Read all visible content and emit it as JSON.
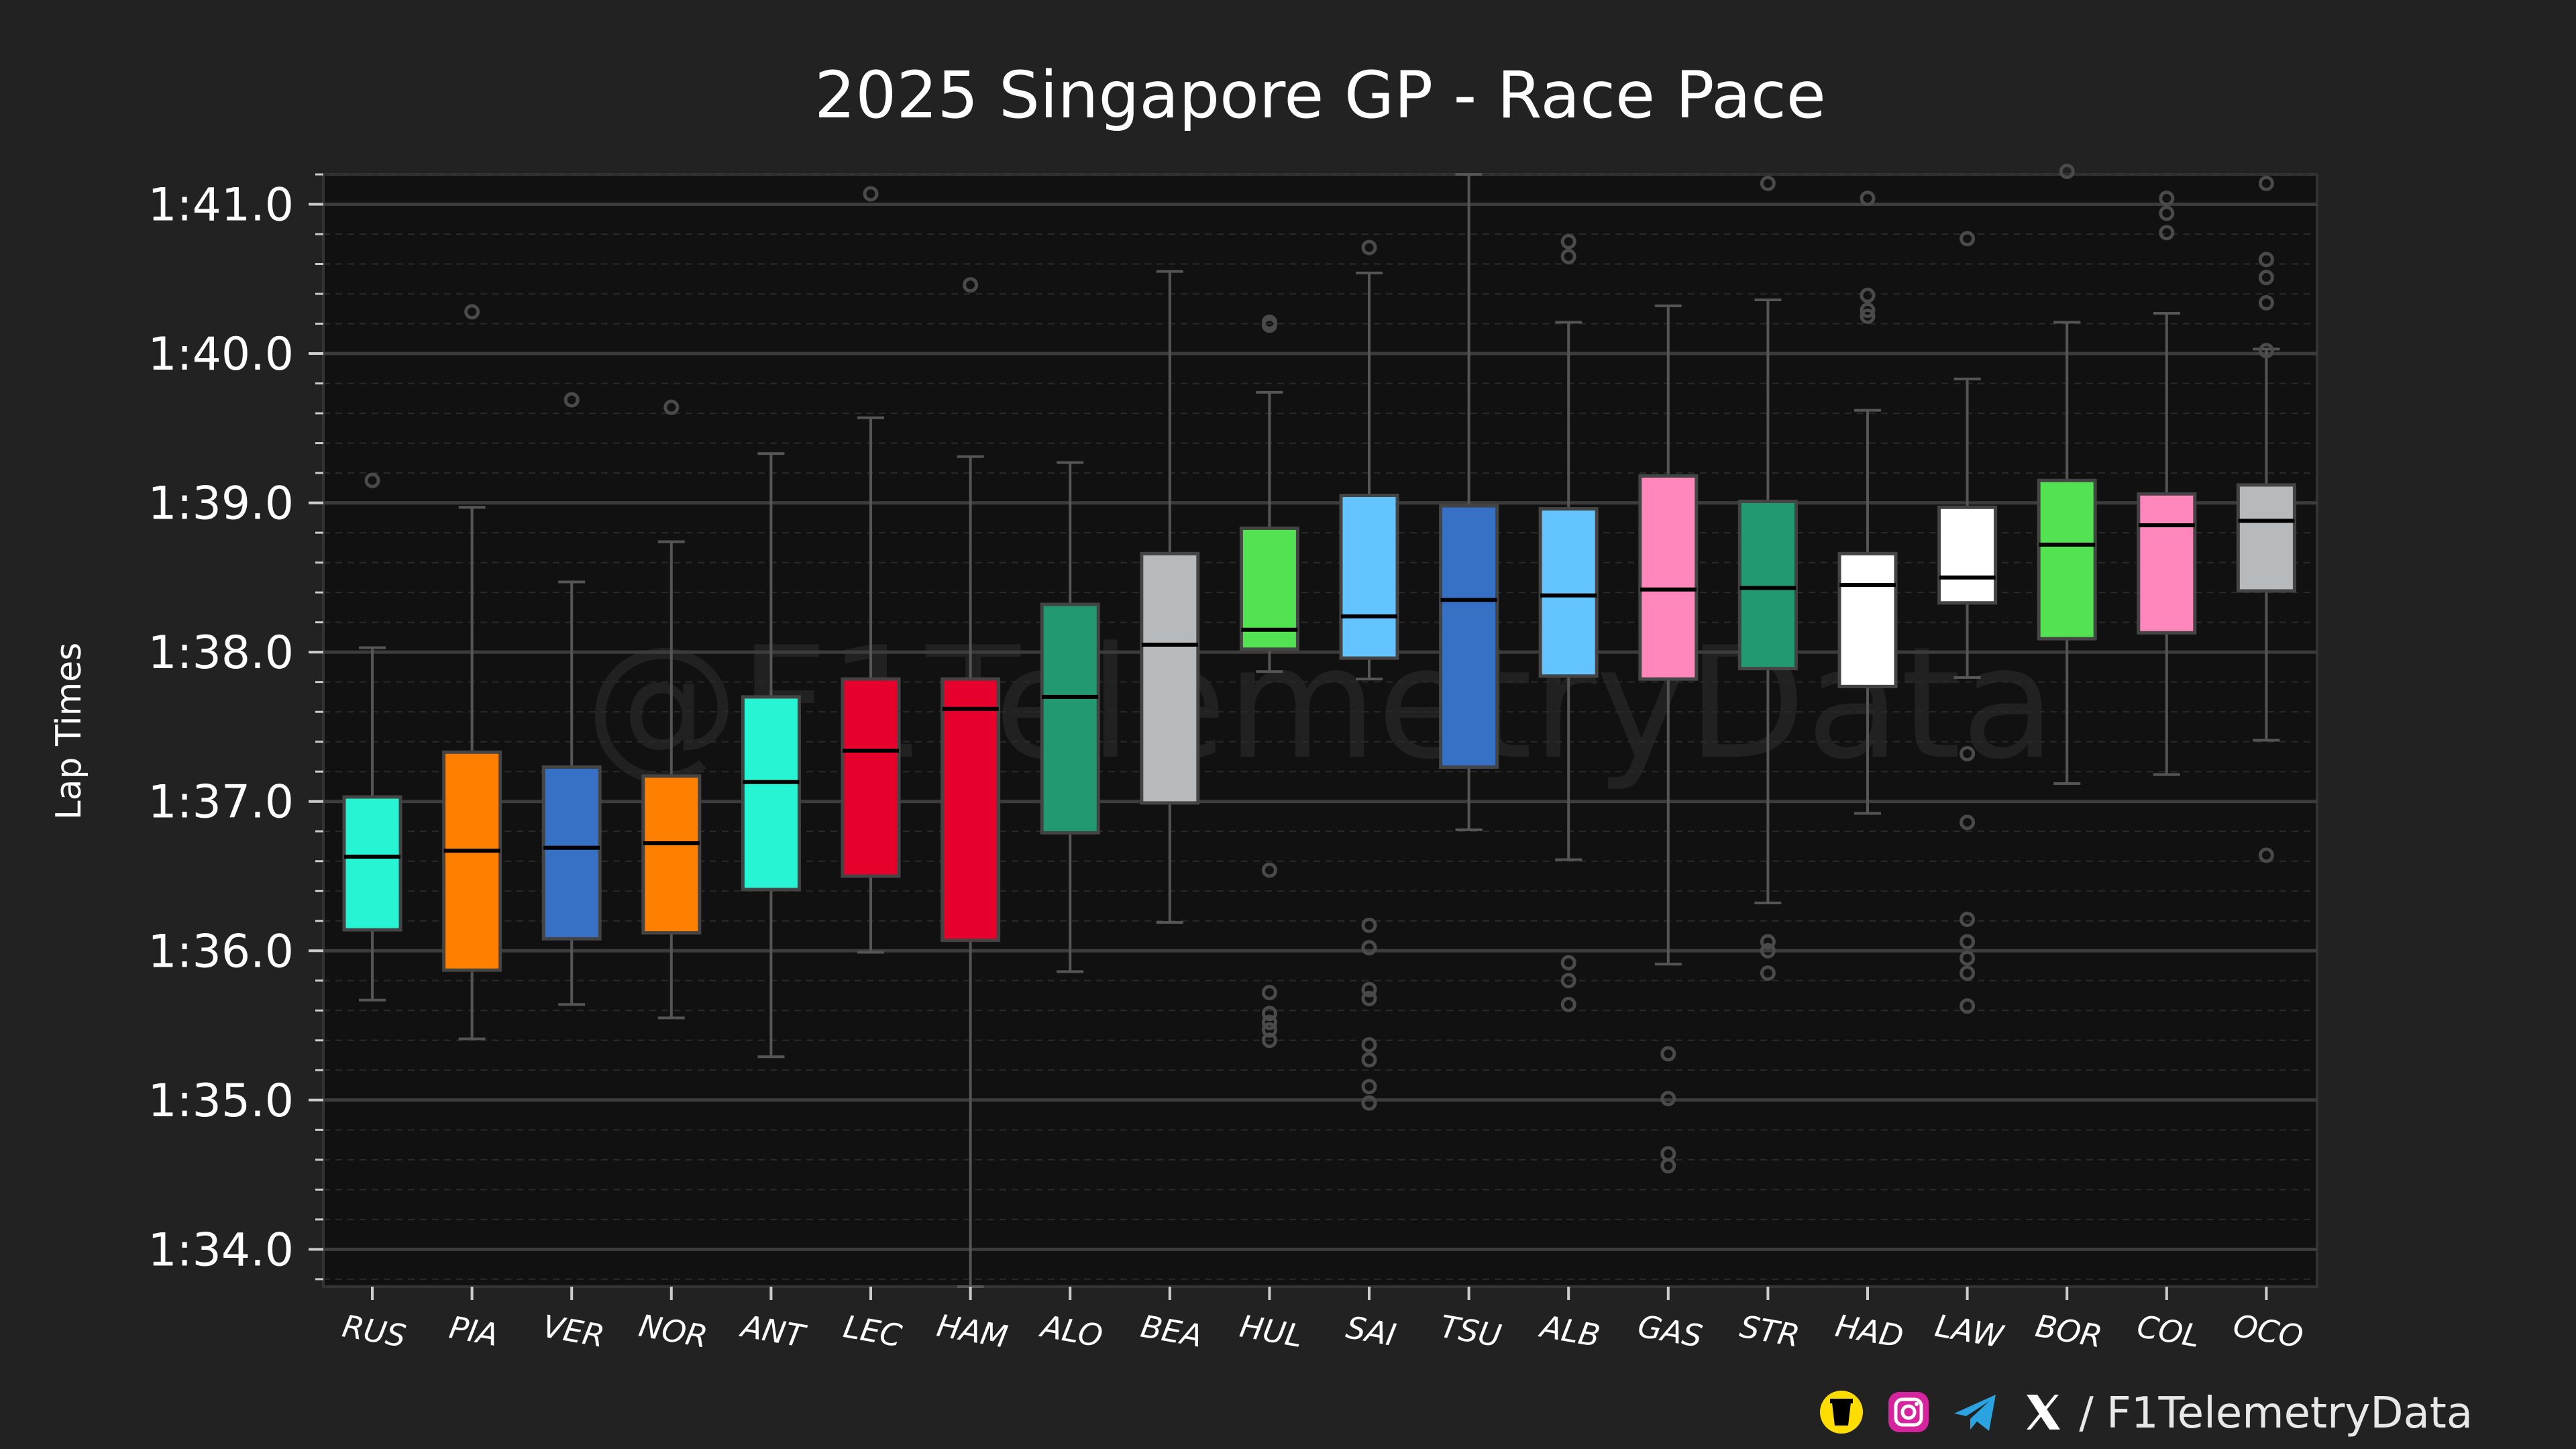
{
  "footer": {
    "separator": "/",
    "handle": "F1TelemetryData",
    "icons": [
      "buymeacoffee-icon",
      "instagram-icon",
      "telegram-icon",
      "x-icon"
    ]
  },
  "chart_data": {
    "type": "box",
    "title": "2025 Singapore GP - Race Pace",
    "xlabel": "",
    "ylabel": "Lap Times",
    "watermark": "@F1TelemetryData",
    "ylim": [
      93.75,
      101.2
    ],
    "yticks": [
      {
        "value": 94,
        "label": "1:34.0"
      },
      {
        "value": 95,
        "label": "1:35.0"
      },
      {
        "value": 96,
        "label": "1:36.0"
      },
      {
        "value": 97,
        "label": "1:37.0"
      },
      {
        "value": 98,
        "label": "1:38.0"
      },
      {
        "value": 99,
        "label": "1:39.0"
      },
      {
        "value": 100,
        "label": "1:40.0"
      },
      {
        "value": 101,
        "label": "1:41.0"
      }
    ],
    "categories": [
      "RUS",
      "PIA",
      "VER",
      "NOR",
      "ANT",
      "LEC",
      "HAM",
      "ALO",
      "BEA",
      "HUL",
      "SAI",
      "TSU",
      "ALB",
      "GAS",
      "STR",
      "HAD",
      "LAW",
      "BOR",
      "COL",
      "OCO"
    ],
    "boxes": [
      {
        "driver": "RUS",
        "color": "#27f4d2",
        "whislo": 95.67,
        "q1": 96.14,
        "median": 96.63,
        "q3": 97.03,
        "whishi": 98.03,
        "fliers": [
          99.15
        ]
      },
      {
        "driver": "PIA",
        "color": "#ff8000",
        "whislo": 95.41,
        "q1": 95.87,
        "median": 96.67,
        "q3": 97.33,
        "whishi": 98.97,
        "fliers": [
          100.28
        ]
      },
      {
        "driver": "VER",
        "color": "#3671c6",
        "whislo": 95.64,
        "q1": 96.08,
        "median": 96.69,
        "q3": 97.23,
        "whishi": 98.47,
        "fliers": [
          99.69
        ]
      },
      {
        "driver": "NOR",
        "color": "#ff8000",
        "whislo": 95.55,
        "q1": 96.12,
        "median": 96.72,
        "q3": 97.17,
        "whishi": 98.74,
        "fliers": [
          99.64
        ]
      },
      {
        "driver": "ANT",
        "color": "#27f4d2",
        "whislo": 95.29,
        "q1": 96.41,
        "median": 97.13,
        "q3": 97.7,
        "whishi": 99.33,
        "fliers": []
      },
      {
        "driver": "LEC",
        "color": "#e8002d",
        "whislo": 95.99,
        "q1": 96.5,
        "median": 97.34,
        "q3": 97.82,
        "whishi": 99.57,
        "fliers": [
          101.07
        ]
      },
      {
        "driver": "HAM",
        "color": "#e8002d",
        "whislo": 93.75,
        "q1": 96.07,
        "median": 97.62,
        "q3": 97.82,
        "whishi": 99.31,
        "fliers": [
          100.46
        ]
      },
      {
        "driver": "ALO",
        "color": "#229971",
        "whislo": 95.86,
        "q1": 96.79,
        "median": 97.7,
        "q3": 98.32,
        "whishi": 99.27,
        "fliers": []
      },
      {
        "driver": "BEA",
        "color": "#b6babd",
        "whislo": 96.19,
        "q1": 96.99,
        "median": 98.05,
        "q3": 98.66,
        "whishi": 100.55,
        "fliers": []
      },
      {
        "driver": "HUL",
        "color": "#52e252",
        "whislo": 97.87,
        "q1": 98.02,
        "median": 98.15,
        "q3": 98.83,
        "whishi": 99.74,
        "fliers": [
          100.19,
          100.21,
          96.54,
          95.72,
          95.58,
          95.52,
          95.47,
          95.4
        ]
      },
      {
        "driver": "SAI",
        "color": "#64c4ff",
        "whislo": 97.82,
        "q1": 97.96,
        "median": 98.24,
        "q3": 99.05,
        "whishi": 100.54,
        "fliers": [
          100.71,
          96.17,
          96.02,
          95.74,
          95.68,
          95.37,
          95.27,
          95.09,
          94.98
        ]
      },
      {
        "driver": "TSU",
        "color": "#3671c6",
        "whislo": 96.81,
        "q1": 97.23,
        "median": 98.35,
        "q3": 98.98,
        "whishi": 101.2,
        "fliers": []
      },
      {
        "driver": "ALB",
        "color": "#64c4ff",
        "whislo": 96.61,
        "q1": 97.84,
        "median": 98.38,
        "q3": 98.96,
        "whishi": 100.21,
        "fliers": [
          100.75,
          100.65,
          95.92,
          95.8,
          95.64
        ]
      },
      {
        "driver": "GAS",
        "color": "#ff87bc",
        "whislo": 95.91,
        "q1": 97.82,
        "median": 98.42,
        "q3": 99.18,
        "whishi": 100.32,
        "fliers": [
          95.31,
          95.01,
          94.64,
          94.56
        ]
      },
      {
        "driver": "STR",
        "color": "#229971",
        "whislo": 96.32,
        "q1": 97.89,
        "median": 98.43,
        "q3": 99.01,
        "whishi": 100.36,
        "fliers": [
          101.14,
          96.06,
          96.0,
          95.85
        ]
      },
      {
        "driver": "HAD",
        "color": "#ffffff",
        "whislo": 96.92,
        "q1": 97.77,
        "median": 98.45,
        "q3": 98.66,
        "whishi": 99.62,
        "fliers": [
          101.04,
          100.39,
          100.29,
          100.25
        ]
      },
      {
        "driver": "LAW",
        "color": "#ffffff",
        "whislo": 97.83,
        "q1": 98.33,
        "median": 98.5,
        "q3": 98.97,
        "whishi": 99.83,
        "fliers": [
          100.77,
          97.32,
          96.86,
          96.21,
          96.06,
          95.95,
          95.85,
          95.63
        ]
      },
      {
        "driver": "BOR",
        "color": "#52e252",
        "whislo": 97.12,
        "q1": 98.09,
        "median": 98.72,
        "q3": 99.15,
        "whishi": 100.21,
        "fliers": [
          101.22
        ]
      },
      {
        "driver": "COL",
        "color": "#ff87bc",
        "whislo": 97.18,
        "q1": 98.13,
        "median": 98.85,
        "q3": 99.06,
        "whishi": 100.27,
        "fliers": [
          101.04,
          100.94,
          100.81
        ]
      },
      {
        "driver": "OCO",
        "color": "#b6babd",
        "whislo": 97.41,
        "q1": 98.41,
        "median": 98.88,
        "q3": 99.12,
        "whishi": 100.03,
        "fliers": [
          101.14,
          100.63,
          100.51,
          100.34,
          100.02,
          96.64
        ]
      }
    ]
  }
}
